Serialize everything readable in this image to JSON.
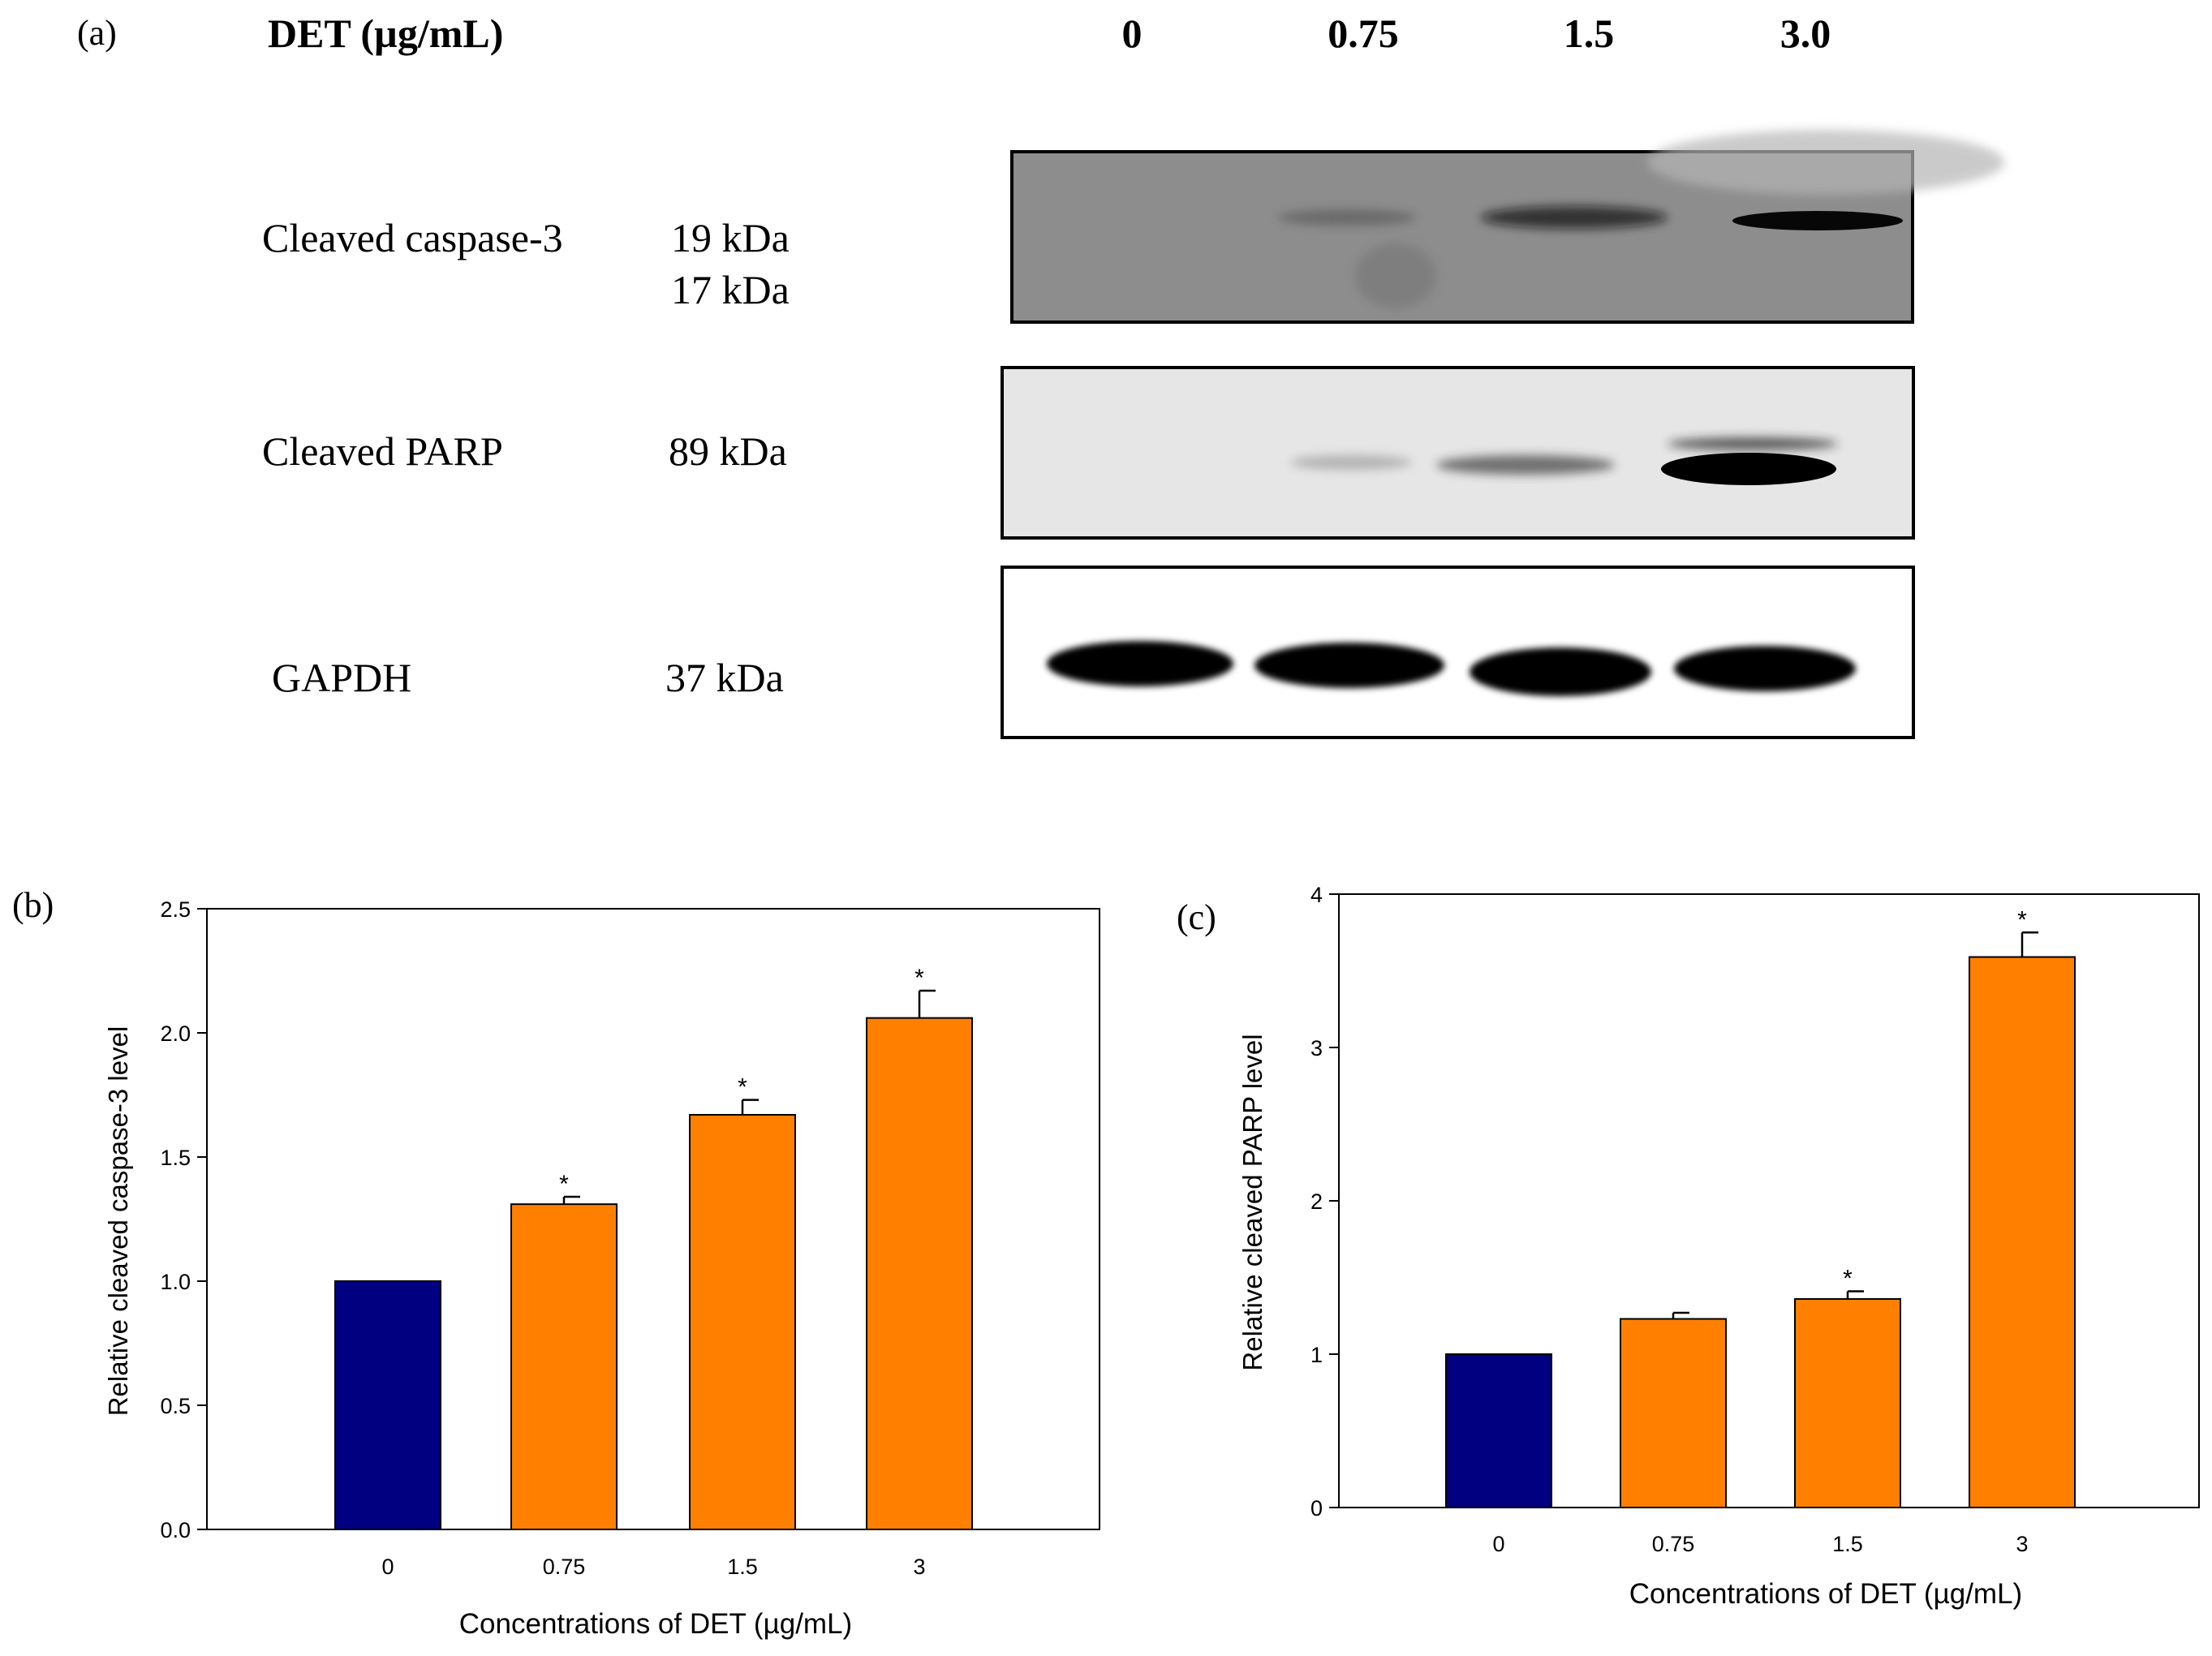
{
  "panel_a": {
    "label": "(a)",
    "header_label": "DET (µg/mL)",
    "lanes": [
      "0",
      "0.75",
      "1.5",
      "3.0"
    ],
    "proteins": [
      {
        "name": "Cleaved caspase-3",
        "weights": [
          "19 kDa",
          "17 kDa"
        ],
        "band_intensity": [
          0.02,
          0.15,
          0.45,
          0.92
        ]
      },
      {
        "name": "Cleaved PARP",
        "weights": [
          "89 kDa"
        ],
        "band_intensity": [
          0.03,
          0.12,
          0.38,
          1.0
        ]
      },
      {
        "name": "GAPDH",
        "weights": [
          "37 kDa"
        ],
        "band_intensity": [
          1.0,
          1.0,
          1.0,
          1.0
        ]
      }
    ]
  },
  "chart_data": [
    {
      "type": "bar",
      "panel_label": "(b)",
      "categories": [
        "0",
        "0.75",
        "1.5",
        "3"
      ],
      "values": [
        1.0,
        1.31,
        1.67,
        2.06
      ],
      "errors": [
        0.0,
        0.03,
        0.06,
        0.11
      ],
      "significance": [
        "",
        "*",
        "*",
        "*"
      ],
      "colors": [
        "#000080",
        "#FF8000",
        "#FF8000",
        "#FF8000"
      ],
      "xlabel": "Concentrations of DET (µg/mL)",
      "ylabel": "Relative cleaved caspase-3 level",
      "ylim": [
        0,
        2.5
      ],
      "yticks": [
        0,
        0.5,
        1.0,
        1.5,
        2.0,
        2.5
      ],
      "ytick_labels": [
        "0.0",
        "0.5",
        "1.0",
        "1.5",
        "2.0",
        "2.5"
      ]
    },
    {
      "type": "bar",
      "panel_label": "(c)",
      "categories": [
        "0",
        "0.75",
        "1.5",
        "3"
      ],
      "values": [
        1.0,
        1.23,
        1.36,
        3.59
      ],
      "errors": [
        0.0,
        0.04,
        0.05,
        0.16
      ],
      "significance": [
        "",
        "",
        "*",
        "*"
      ],
      "colors": [
        "#000080",
        "#FF8000",
        "#FF8000",
        "#FF8000"
      ],
      "xlabel": "Concentrations of DET (µg/mL)",
      "ylabel": "Relative cleaved PARP level",
      "ylim": [
        0,
        4
      ],
      "yticks": [
        0,
        1,
        2,
        3,
        4
      ],
      "ytick_labels": [
        "0",
        "1",
        "2",
        "3",
        "4"
      ]
    }
  ]
}
